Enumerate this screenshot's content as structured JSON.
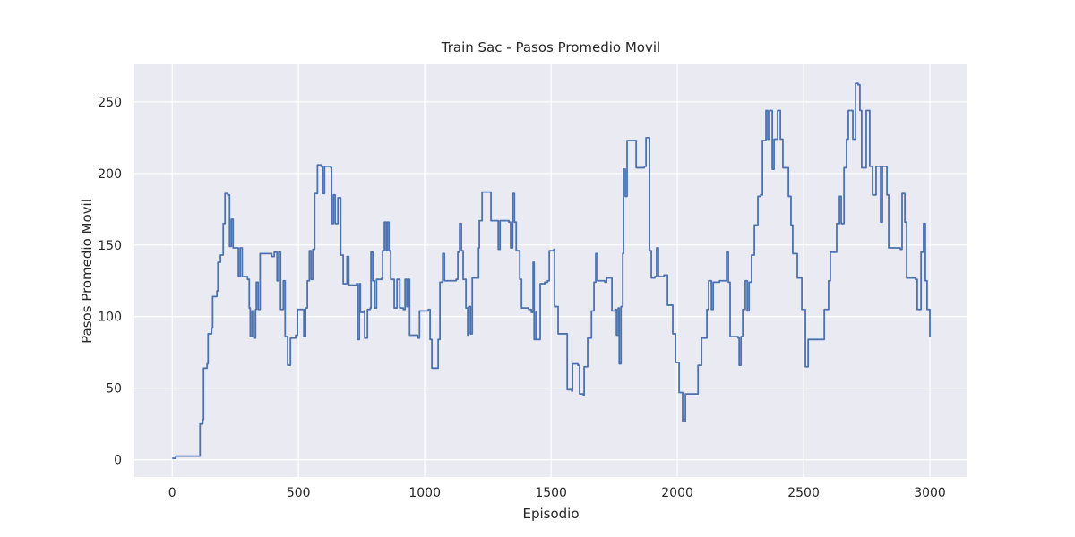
{
  "chart_data": {
    "type": "line",
    "title": "Train Sac - Pasos Promedio Movil",
    "xlabel": "Episodio",
    "ylabel": "Pasos Promedio Movil",
    "drawstyle": "steps-post",
    "grid": true,
    "background": "#eaeaf2",
    "grid_color": "#ffffff",
    "xlim": [
      -149.95,
      3148.95
    ],
    "ylim": [
      -12.1,
      276.2
    ],
    "xticks": [
      0,
      500,
      1000,
      1500,
      2000,
      2500,
      3000
    ],
    "yticks": [
      0,
      50,
      100,
      150,
      200,
      250
    ],
    "x": [
      0,
      14,
      110,
      121,
      124,
      138,
      142,
      156,
      160,
      177,
      181,
      191,
      202,
      209,
      220,
      227,
      234,
      241,
      262,
      269,
      277,
      298,
      305,
      309,
      316,
      323,
      330,
      333,
      340,
      348,
      394,
      404,
      415,
      422,
      429,
      440,
      447,
      457,
      468,
      489,
      496,
      521,
      528,
      535,
      543,
      550,
      557,
      564,
      575,
      589,
      596,
      603,
      628,
      631,
      638,
      645,
      656,
      667,
      677,
      692,
      699,
      730,
      734,
      741,
      745,
      759,
      762,
      773,
      784,
      787,
      794,
      801,
      809,
      830,
      833,
      840,
      847,
      851,
      858,
      865,
      879,
      890,
      901,
      915,
      922,
      929,
      936,
      940,
      972,
      979,
      1014,
      1021,
      1028,
      1053,
      1060,
      1071,
      1078,
      1124,
      1131,
      1138,
      1145,
      1152,
      1163,
      1170,
      1174,
      1181,
      1188,
      1213,
      1216,
      1227,
      1262,
      1291,
      1298,
      1333,
      1340,
      1348,
      1355,
      1362,
      1376,
      1383,
      1411,
      1422,
      1429,
      1433,
      1440,
      1443,
      1457,
      1475,
      1486,
      1493,
      1511,
      1514,
      1528,
      1564,
      1582,
      1585,
      1606,
      1613,
      1628,
      1631,
      1645,
      1660,
      1670,
      1677,
      1684,
      1713,
      1720,
      1741,
      1755,
      1759,
      1766,
      1770,
      1777,
      1784,
      1787,
      1794,
      1801,
      1837,
      1869,
      1876,
      1890,
      1897,
      1911,
      1918,
      1925,
      1947,
      1961,
      1982,
      1993,
      2007,
      2021,
      2032,
      2082,
      2096,
      2117,
      2124,
      2135,
      2142,
      2167,
      2195,
      2202,
      2209,
      2241,
      2245,
      2252,
      2259,
      2269,
      2277,
      2284,
      2294,
      2305,
      2319,
      2330,
      2337,
      2351,
      2358,
      2365,
      2376,
      2383,
      2397,
      2408,
      2418,
      2440,
      2450,
      2457,
      2475,
      2493,
      2507,
      2518,
      2582,
      2599,
      2606,
      2631,
      2642,
      2649,
      2660,
      2670,
      2677,
      2695,
      2706,
      2716,
      2723,
      2730,
      2748,
      2762,
      2773,
      2787,
      2805,
      2812,
      2830,
      2837,
      2883,
      2890,
      2901,
      2908,
      2943,
      2950,
      2965,
      2975,
      2982,
      2989,
      3000
    ],
    "series": [
      {
        "name": "Pasos Promedio Movil",
        "color": "#4c72b0",
        "values": [
          1,
          2.5,
          25,
          28,
          64,
          67,
          88,
          92,
          114,
          118,
          138,
          143,
          165,
          186,
          185,
          149,
          168,
          148,
          128,
          148,
          128,
          126,
          106,
          86,
          104,
          85,
          105,
          124,
          105,
          144,
          142,
          145,
          125,
          145,
          105,
          125,
          86,
          66,
          85,
          87,
          105,
          86,
          106,
          125,
          146,
          126,
          147,
          186,
          206,
          205,
          186,
          205,
          204,
          165,
          185,
          165,
          183,
          143,
          123,
          142,
          122,
          123,
          84,
          123,
          103,
          104,
          85,
          105,
          106,
          145,
          125,
          106,
          126,
          127,
          146,
          166,
          146,
          166,
          146,
          126,
          106,
          126,
          106,
          105,
          126,
          107,
          126,
          87,
          85,
          104,
          105,
          84,
          64,
          84,
          124,
          144,
          125,
          126,
          145,
          165,
          146,
          126,
          106,
          87,
          107,
          88,
          127,
          148,
          167,
          187,
          167,
          147,
          167,
          166,
          148,
          186,
          166,
          146,
          126,
          106,
          105,
          103,
          138,
          84,
          103,
          84,
          123,
          124,
          125,
          146,
          147,
          107,
          88,
          49,
          48,
          67,
          66,
          46,
          45,
          65,
          85,
          104,
          124,
          144,
          125,
          124,
          127,
          104,
          105,
          87,
          106,
          67,
          107,
          144,
          203,
          184,
          223,
          204,
          205,
          225,
          146,
          127,
          128,
          148,
          128,
          129,
          108,
          88,
          68,
          47,
          27,
          46,
          66,
          85,
          105,
          125,
          105,
          124,
          125,
          145,
          124,
          86,
          85,
          66,
          86,
          105,
          125,
          104,
          124,
          143,
          164,
          184,
          185,
          223,
          244,
          224,
          244,
          203,
          224,
          244,
          224,
          204,
          184,
          164,
          144,
          127,
          105,
          65,
          84,
          105,
          125,
          145,
          165,
          184,
          165,
          204,
          224,
          244,
          224,
          263,
          262,
          244,
          204,
          244,
          205,
          185,
          205,
          166,
          205,
          185,
          148,
          147,
          186,
          166,
          127,
          126,
          105,
          145,
          165,
          125,
          105,
          86
        ]
      }
    ]
  }
}
